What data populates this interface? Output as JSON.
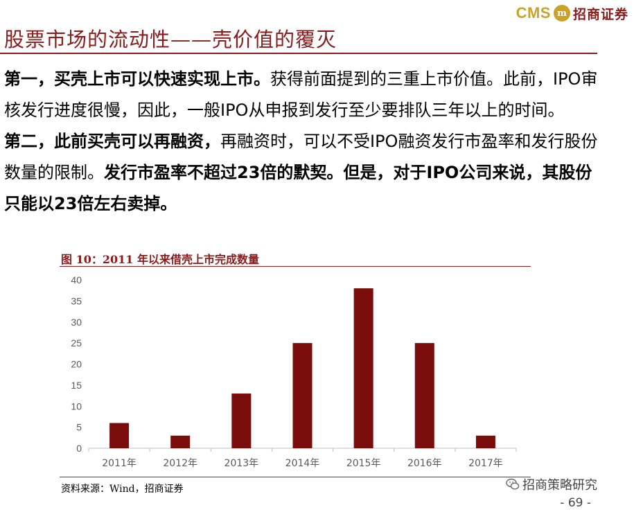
{
  "brand": {
    "cms": "CMS",
    "emblem": "m",
    "name": "招商证券",
    "color": "#c9a227"
  },
  "page_title": "股票市场的流动性——壳价值的覆灭",
  "body": {
    "p1_bold": "第一，买壳上市可以快速实现上市。",
    "p1_text": "获得前面提到的三重上市价值。此前，IPO审核发行进度很慢，因此，一般IPO从申报到发行至少要排队三年以上的时间。",
    "p2_bold": "第二，此前买壳可以再融资，",
    "p2_text1": "再融资时，可以不受IPO融资发行市盈率和发行股份数量的限制。",
    "p2_bold2": "发行市盈率不超过23倍的默契。但是，对于IPO公司来说，其股份只能以23倍左右卖掉。"
  },
  "figure_title": "图 10：2011 年以来借壳上市完成数量",
  "chart_data": {
    "type": "bar",
    "categories": [
      "2011年",
      "2012年",
      "2013年",
      "2014年",
      "2015年",
      "2016年",
      "2017年"
    ],
    "values": [
      6,
      3,
      13,
      25,
      38,
      25,
      3
    ],
    "ylim": [
      0,
      40
    ],
    "yticks": [
      0,
      5,
      10,
      15,
      20,
      25,
      30,
      35,
      40
    ],
    "bar_color": "#7b0c0c",
    "grid": false,
    "legend": "none"
  },
  "source": "资料来源：Wind，招商证券",
  "watermark": "招商策略研究",
  "page_number": "- 69 -",
  "colors": {
    "title_red": "#8b1a1a"
  }
}
